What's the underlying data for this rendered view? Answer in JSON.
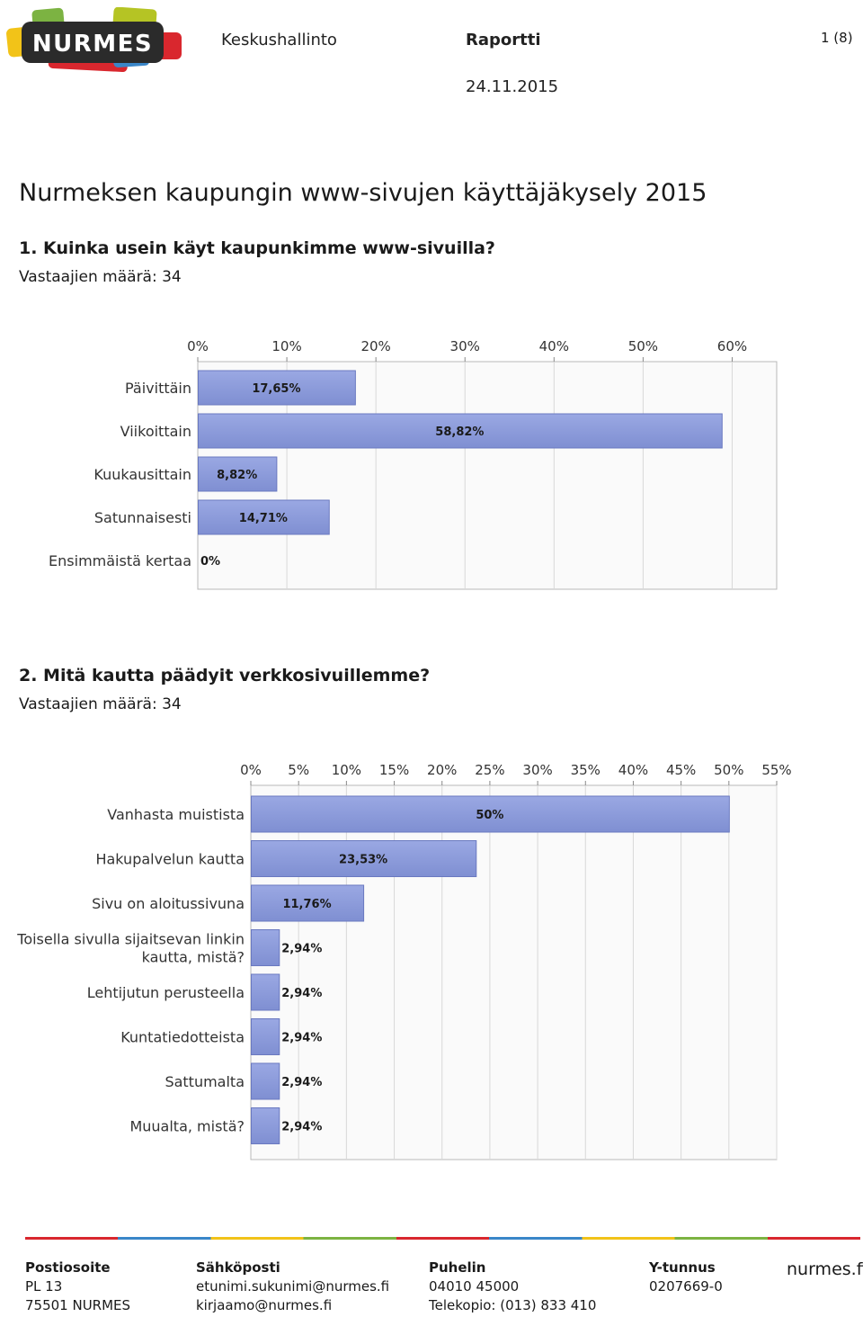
{
  "header": {
    "logo_text": "NURMES",
    "organization": "Keskushallinto",
    "doc_type": "Raportti",
    "date": "24.11.2015",
    "page": "1 (8)"
  },
  "survey_title": "Nurmeksen kaupungin www-sivujen käyttäjäkysely 2015",
  "questions": [
    {
      "title": "1. Kuinka usein käyt kaupunkimme www-sivuilla?",
      "respondents": "Vastaajien määrä: 34"
    },
    {
      "title": "2. Mitä kautta päädyit verkkosivuillemme?",
      "respondents": "Vastaajien määrä: 34"
    }
  ],
  "chart_data": [
    {
      "type": "bar",
      "orientation": "horizontal",
      "categories": [
        "Päivittäin",
        "Viikoittain",
        "Kuukausittain",
        "Satunnaisesti",
        "Ensimmäistä kertaa"
      ],
      "values": [
        17.65,
        58.82,
        8.82,
        14.71,
        0
      ],
      "data_labels": [
        "17,65%",
        "58,82%",
        "8,82%",
        "14,71%",
        "0%"
      ],
      "xlim": [
        0,
        65
      ],
      "ticks": [
        0,
        10,
        20,
        30,
        40,
        50,
        60
      ],
      "tick_labels": [
        "0%",
        "10%",
        "20%",
        "30%",
        "40%",
        "50%",
        "60%"
      ],
      "axis_position": "top",
      "grid": true,
      "bar_color": "#7f8fd2"
    },
    {
      "type": "bar",
      "orientation": "horizontal",
      "categories": [
        "Vanhasta muistista",
        "Hakupalvelun kautta",
        "Sivu on aloitussivuna",
        [
          "Toisella sivulla sijaitsevan linkin",
          "kautta, mistä?"
        ],
        "Lehtijutun perusteella",
        "Kuntatiedotteista",
        "Sattumalta",
        "Muualta, mistä?"
      ],
      "values": [
        50,
        23.53,
        11.76,
        2.94,
        2.94,
        2.94,
        2.94,
        2.94
      ],
      "data_labels": [
        "50%",
        "23,53%",
        "11,76%",
        "2,94%",
        "2,94%",
        "2,94%",
        "2,94%",
        "2,94%"
      ],
      "xlim": [
        0,
        55
      ],
      "ticks": [
        0,
        5,
        10,
        15,
        20,
        25,
        30,
        35,
        40,
        45,
        50,
        55
      ],
      "tick_labels": [
        "0%",
        "5%",
        "10%",
        "15%",
        "20%",
        "25%",
        "30%",
        "35%",
        "40%",
        "45%",
        "50%",
        "55%"
      ],
      "axis_position": "top",
      "grid": true,
      "bar_color": "#7f8fd2"
    }
  ],
  "footer": {
    "postal": {
      "heading": "Postiosoite",
      "line1": "PL 13",
      "line2": "75501 NURMES"
    },
    "email": {
      "heading": "Sähköposti",
      "line1": "etunimi.sukunimi@nurmes.fi",
      "line2": "kirjaamo@nurmes.fi"
    },
    "phone": {
      "heading": "Puhelin",
      "line1": "04010 45000",
      "line2": "Telekopio: (013) 833 410"
    },
    "business_id": {
      "heading": "Y-tunnus",
      "line1": "0207669-0"
    },
    "website": "nurmes.fi",
    "stripe_colors": [
      "#d9272e",
      "#3a86c8",
      "#f2c318",
      "#7cb342",
      "#d9272e",
      "#3a86c8",
      "#f2c318",
      "#7cb342",
      "#d9272e"
    ]
  }
}
